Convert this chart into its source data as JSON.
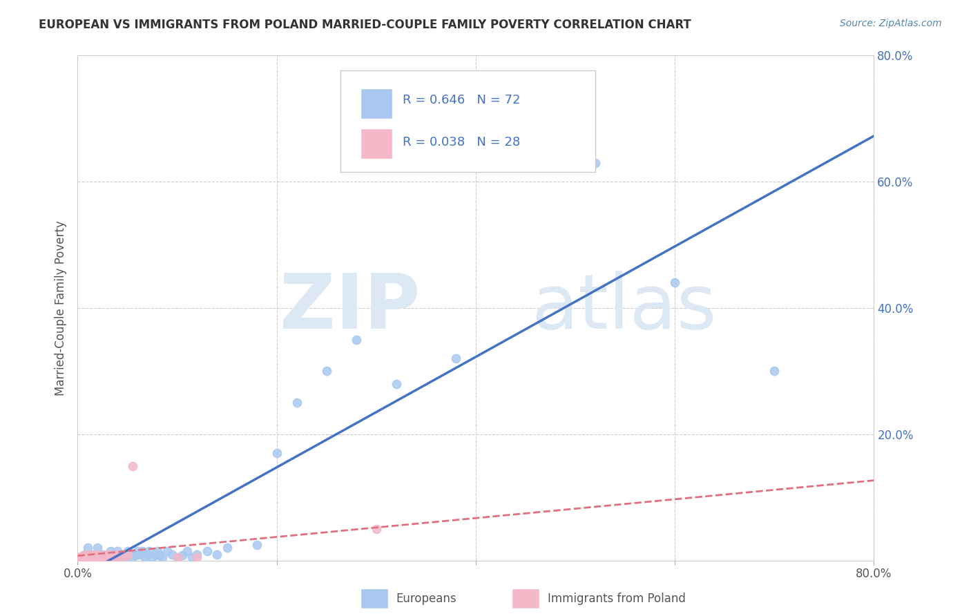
{
  "title": "EUROPEAN VS IMMIGRANTS FROM POLAND MARRIED-COUPLE FAMILY POVERTY CORRELATION CHART",
  "source": "Source: ZipAtlas.com",
  "ylabel": "Married-Couple Family Poverty",
  "xlim": [
    0.0,
    0.8
  ],
  "ylim": [
    0.0,
    0.8
  ],
  "xticks": [
    0.0,
    0.2,
    0.4,
    0.6,
    0.8
  ],
  "yticks": [
    0.0,
    0.2,
    0.4,
    0.6,
    0.8
  ],
  "xticklabels": [
    "0.0%",
    "",
    "40.0%",
    "",
    "80.0%"
  ],
  "yticklabels": [
    "",
    "20.0%",
    "40.0%",
    "60.0%",
    "80.0%"
  ],
  "right_yticklabels": [
    "80.0%",
    "60.0%",
    "40.0%",
    "20.0%",
    ""
  ],
  "R_european": 0.646,
  "N_european": 72,
  "R_poland": 0.038,
  "N_poland": 28,
  "european_color": "#a8c8f0",
  "poland_color": "#f4b8c8",
  "trendline_european_color": "#4472c4",
  "trendline_poland_color": "#e07080",
  "background_color": "#ffffff",
  "grid_color": "#cccccc",
  "legend_label_european": "Europeans",
  "legend_label_poland": "Immigrants from Poland",
  "eu_x": [
    0.005,
    0.007,
    0.008,
    0.01,
    0.01,
    0.01,
    0.012,
    0.013,
    0.015,
    0.015,
    0.017,
    0.018,
    0.018,
    0.02,
    0.02,
    0.02,
    0.022,
    0.022,
    0.023,
    0.025,
    0.025,
    0.027,
    0.028,
    0.03,
    0.03,
    0.032,
    0.033,
    0.035,
    0.037,
    0.038,
    0.04,
    0.04,
    0.042,
    0.045,
    0.047,
    0.05,
    0.05,
    0.053,
    0.055,
    0.058,
    0.06,
    0.062,
    0.065,
    0.068,
    0.07,
    0.072,
    0.075,
    0.078,
    0.08,
    0.082,
    0.085,
    0.09,
    0.095,
    0.1,
    0.105,
    0.11,
    0.115,
    0.12,
    0.13,
    0.14,
    0.15,
    0.18,
    0.2,
    0.22,
    0.25,
    0.28,
    0.32,
    0.38,
    0.45,
    0.52,
    0.6,
    0.7
  ],
  "eu_y": [
    0.005,
    0.01,
    0.005,
    0.02,
    0.005,
    0.008,
    0.005,
    0.01,
    0.005,
    0.008,
    0.005,
    0.01,
    0.005,
    0.008,
    0.02,
    0.005,
    0.01,
    0.005,
    0.008,
    0.005,
    0.01,
    0.005,
    0.008,
    0.01,
    0.005,
    0.008,
    0.015,
    0.01,
    0.005,
    0.008,
    0.015,
    0.005,
    0.008,
    0.01,
    0.005,
    0.008,
    0.015,
    0.01,
    0.005,
    0.008,
    0.015,
    0.01,
    0.015,
    0.005,
    0.01,
    0.015,
    0.005,
    0.01,
    0.015,
    0.008,
    0.005,
    0.015,
    0.01,
    0.005,
    0.008,
    0.015,
    0.005,
    0.01,
    0.015,
    0.01,
    0.02,
    0.025,
    0.17,
    0.25,
    0.3,
    0.35,
    0.28,
    0.32,
    0.67,
    0.63,
    0.44,
    0.3
  ],
  "pl_x": [
    0.0,
    0.002,
    0.004,
    0.005,
    0.007,
    0.008,
    0.01,
    0.01,
    0.012,
    0.013,
    0.015,
    0.017,
    0.018,
    0.02,
    0.022,
    0.025,
    0.027,
    0.03,
    0.032,
    0.035,
    0.038,
    0.04,
    0.045,
    0.05,
    0.055,
    0.1,
    0.12,
    0.3
  ],
  "pl_y": [
    0.005,
    0.005,
    0.005,
    0.008,
    0.005,
    0.008,
    0.005,
    0.01,
    0.005,
    0.008,
    0.005,
    0.008,
    0.005,
    0.01,
    0.005,
    0.008,
    0.005,
    0.01,
    0.005,
    0.008,
    0.005,
    0.01,
    0.005,
    0.008,
    0.15,
    0.005,
    0.005,
    0.05
  ]
}
